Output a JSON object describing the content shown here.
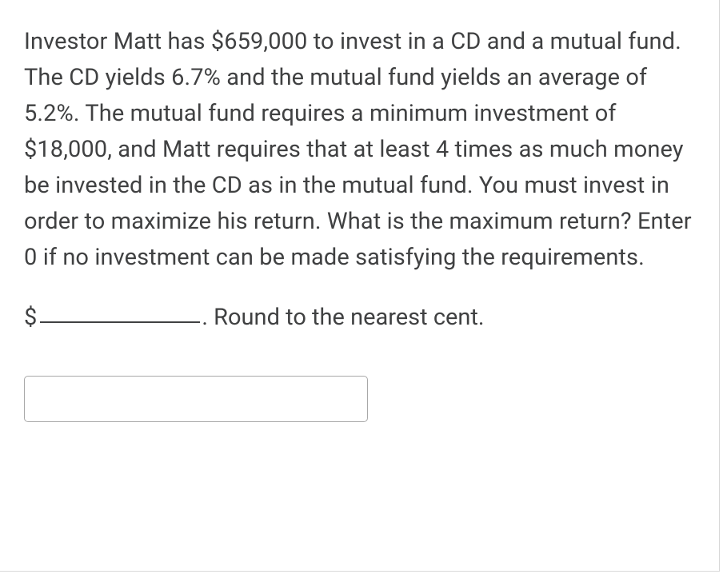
{
  "question": {
    "body_text": "Investor Matt has $659,000 to invest in a CD and a mutual fund.  The CD yields 6.7% and the mutual fund yields an average of 5.2%.  The mutual fund requires a minimum investment of $18,000, and Matt requires that at least 4 times as much money be invested in the CD as in the mutual fund.  You must invest in order to maximize his return.  What is the maximum return?  Enter 0 if no investment can be made satisfying the requirements.",
    "answer_prefix": "$",
    "answer_suffix": ".  Round to the nearest cent.",
    "input_value": ""
  },
  "styling": {
    "text_color": "#404142",
    "border_color": "#d8d8d8",
    "input_border_color": "#a8a8a8",
    "background_color": "#ffffff",
    "font_size_body": 29,
    "line_height": 1.55,
    "input_width": 430,
    "input_height": 58,
    "blank_line_width": 200,
    "container_width": 900,
    "container_height": 715
  }
}
